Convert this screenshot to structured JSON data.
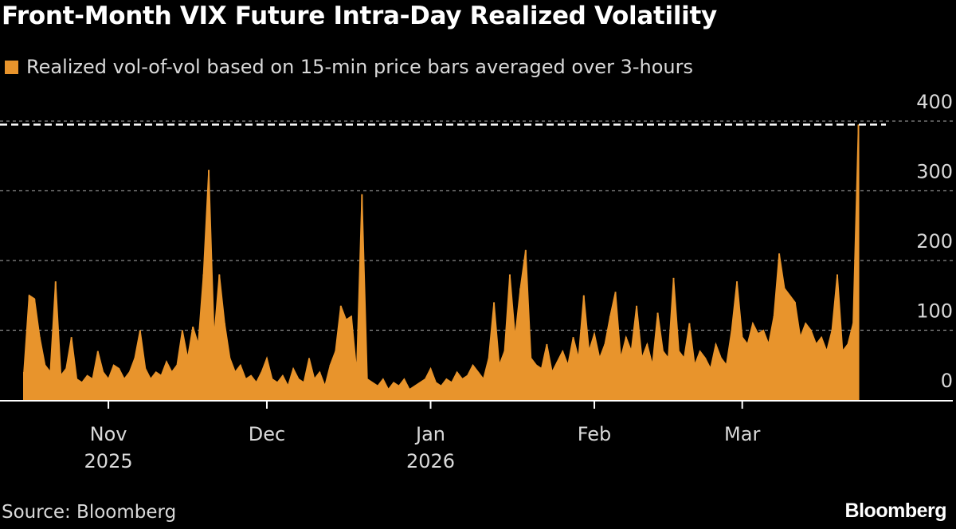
{
  "chart_data": {
    "type": "area",
    "title": "Front-Month VIX Future Intra-Day Realized Volatility",
    "legend_position": "top-left",
    "series": [
      {
        "name": "Realized vol-of-vol based on 15-min price bars averaged over 3-hours",
        "color": "#e8942c",
        "values": [
          40,
          150,
          145,
          90,
          50,
          40,
          170,
          35,
          45,
          90,
          30,
          25,
          35,
          30,
          70,
          40,
          30,
          50,
          45,
          30,
          40,
          60,
          100,
          45,
          30,
          40,
          35,
          55,
          40,
          50,
          100,
          60,
          105,
          80,
          180,
          330,
          90,
          180,
          110,
          60,
          40,
          50,
          30,
          35,
          25,
          40,
          60,
          30,
          25,
          35,
          20,
          45,
          30,
          25,
          60,
          30,
          40,
          20,
          50,
          70,
          135,
          115,
          120,
          40,
          295,
          30,
          25,
          20,
          30,
          15,
          25,
          20,
          30,
          15,
          20,
          25,
          30,
          45,
          25,
          20,
          30,
          25,
          40,
          30,
          35,
          50,
          40,
          30,
          60,
          140,
          50,
          70,
          180,
          90,
          160,
          215,
          60,
          50,
          45,
          80,
          40,
          55,
          70,
          50,
          90,
          60,
          150,
          70,
          95,
          60,
          80,
          120,
          155,
          60,
          90,
          70,
          135,
          60,
          80,
          50,
          125,
          70,
          60,
          175,
          70,
          60,
          110,
          50,
          70,
          60,
          45,
          80,
          60,
          50,
          100,
          170,
          90,
          80,
          110,
          95,
          100,
          80,
          120,
          210,
          160,
          150,
          140,
          90,
          110,
          100,
          80,
          90,
          70,
          100,
          180,
          70,
          80,
          110,
          395
        ]
      }
    ],
    "x_range": [
      "2025-10-16",
      "2026-03-23"
    ],
    "x_ticks": [
      {
        "date": "2025-11-01",
        "month": "Nov",
        "year": "2025"
      },
      {
        "date": "2025-12-01",
        "month": "Dec",
        "year": ""
      },
      {
        "date": "2026-01-01",
        "month": "Jan",
        "year": "2026"
      },
      {
        "date": "2026-02-01",
        "month": "Feb",
        "year": ""
      },
      {
        "date": "2026-03-01",
        "month": "Mar",
        "year": ""
      }
    ],
    "y_ticks": [
      0,
      100,
      200,
      300,
      400
    ],
    "ylim": [
      0,
      400
    ],
    "y_axis_side": "right",
    "grid": true,
    "reference_line": {
      "value": 395,
      "color": "#ffffff",
      "style": "dashed"
    },
    "source": "Source: Bloomberg",
    "brand": "Bloomberg"
  }
}
